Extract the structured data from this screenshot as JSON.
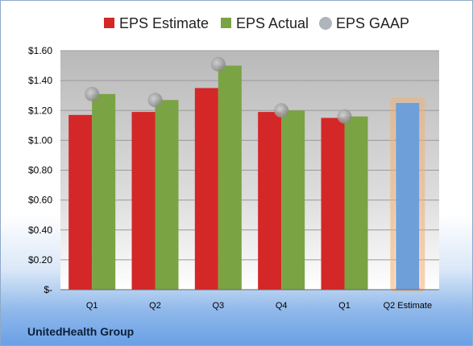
{
  "chart_data": {
    "type": "bar",
    "categories": [
      "Q1",
      "Q2",
      "Q3",
      "Q4",
      "Q1",
      "Q2 Estimate"
    ],
    "series": [
      {
        "name": "EPS Estimate",
        "values": [
          1.17,
          1.19,
          1.35,
          1.19,
          1.15,
          null
        ]
      },
      {
        "name": "EPS Actual",
        "values": [
          1.31,
          1.27,
          1.5,
          1.2,
          1.16,
          null
        ]
      },
      {
        "name": "EPS GAAP",
        "values": [
          1.31,
          1.27,
          1.51,
          1.2,
          1.16,
          null
        ]
      }
    ],
    "projection": {
      "category": "Q2 Estimate",
      "value": 1.25
    },
    "yticks": [
      "$-",
      "$0.20",
      "$0.40",
      "$0.60",
      "$0.80",
      "$1.00",
      "$1.20",
      "$1.40",
      "$1.60"
    ],
    "ylim": [
      0,
      1.6
    ],
    "legend_position": "top",
    "grid": true,
    "colors": {
      "estimate": "#d42727",
      "actual": "#7aa344",
      "gaap": "#b9b9b9",
      "projection": "#6e9fd8",
      "projection_glow": "#f4b071"
    }
  },
  "footer": {
    "company": "UnitedHealth Group"
  }
}
